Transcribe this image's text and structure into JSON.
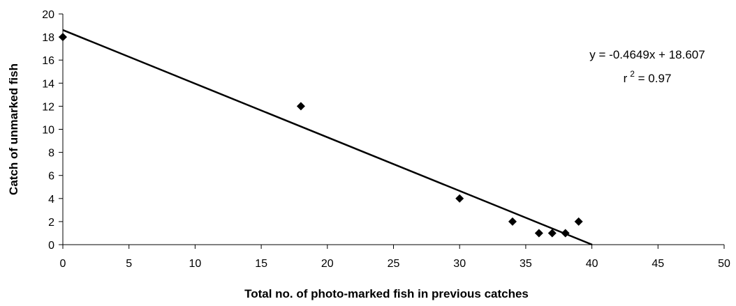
{
  "chart_data": {
    "type": "scatter",
    "xlabel": "Total no. of photo-marked fish in previous catches",
    "ylabel": "Catch of unmarked fish",
    "xlim": [
      0,
      50
    ],
    "ylim": [
      0,
      20
    ],
    "xticks": [
      "0",
      "5",
      "10",
      "15",
      "20",
      "25",
      "30",
      "35",
      "40",
      "45",
      "50"
    ],
    "yticks": [
      "0",
      "2",
      "4",
      "6",
      "8",
      "10",
      "12",
      "14",
      "16",
      "18",
      "20"
    ],
    "grid": false,
    "legend": "none",
    "marker": "diamond",
    "marker_color": "#000000",
    "points": [
      {
        "x": 0,
        "y": 18
      },
      {
        "x": 18,
        "y": 12
      },
      {
        "x": 30,
        "y": 4
      },
      {
        "x": 34,
        "y": 2
      },
      {
        "x": 36,
        "y": 1
      },
      {
        "x": 37,
        "y": 1
      },
      {
        "x": 38,
        "y": 1
      },
      {
        "x": 39,
        "y": 2
      }
    ],
    "trendline": {
      "slope": -0.4649,
      "intercept": 18.607,
      "x_start": 0,
      "x_end": 40.02,
      "color": "#000000"
    },
    "annotation": {
      "equation": "y = -0.4649x + 18.607",
      "r2_prefix": "r",
      "r2_superscript": "2",
      "r2_suffix": " = 0.97"
    }
  }
}
